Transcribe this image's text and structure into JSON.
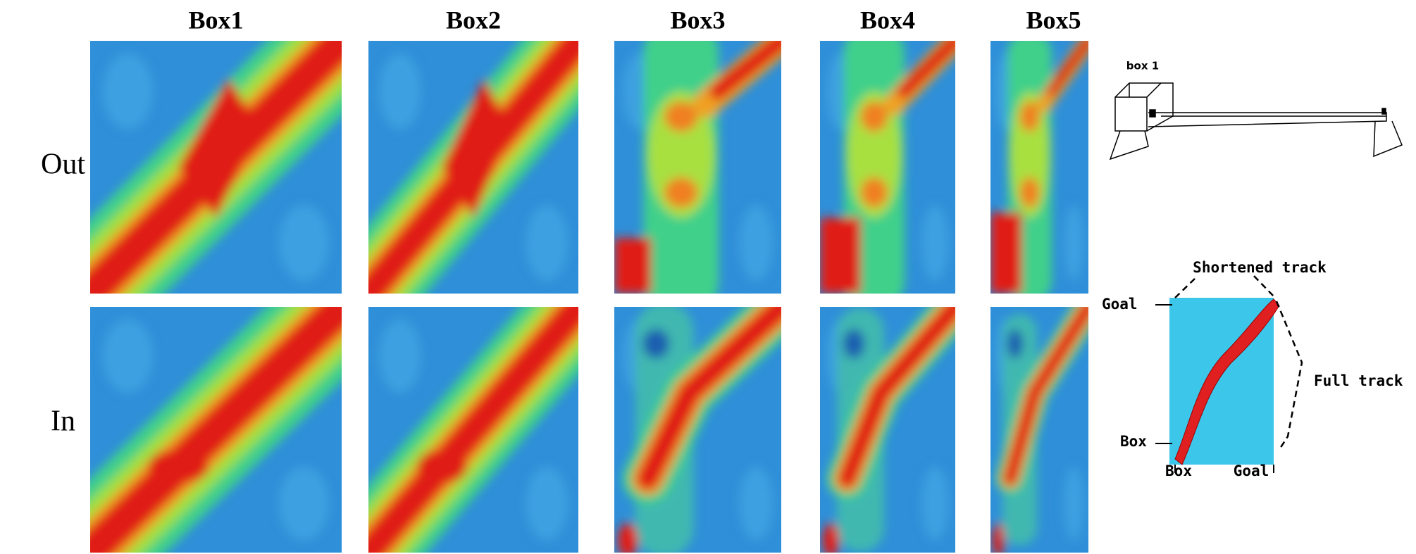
{
  "columns": [
    "Box1",
    "Box2",
    "Box3",
    "Box4",
    "Box5"
  ],
  "rows": [
    "Out",
    "In"
  ],
  "apparatus": {
    "label": "box 1"
  },
  "track_diagram": {
    "title": "Shortened track",
    "goal_left": "Goal",
    "full_track": "Full track",
    "box_left": "Box",
    "box_bottom": "Box",
    "goal_bottom": "Goal"
  }
}
